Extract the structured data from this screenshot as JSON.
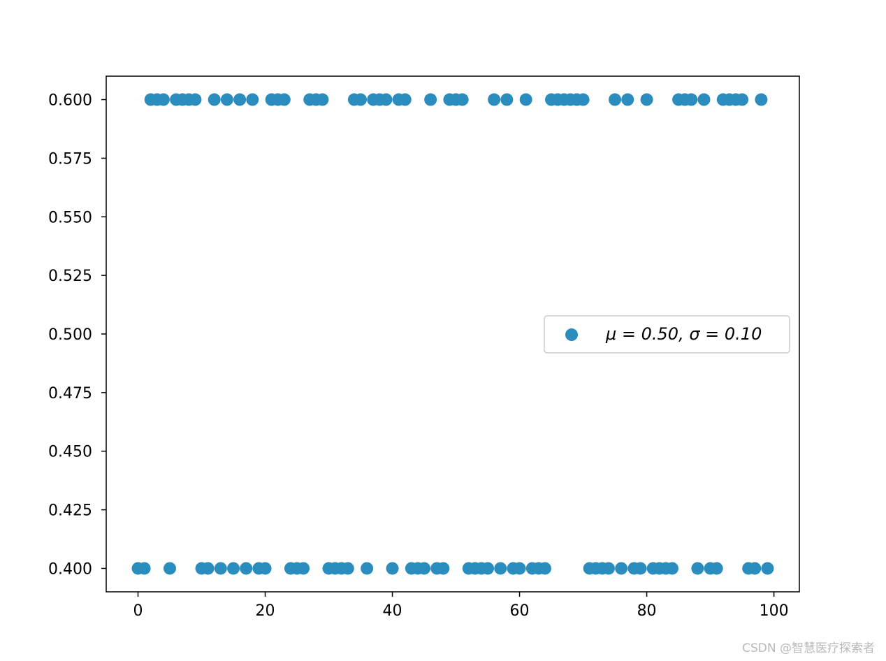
{
  "chart_data": {
    "type": "scatter",
    "title": "",
    "xlabel": "",
    "ylabel": "",
    "xlim": [
      -5,
      104
    ],
    "ylim": [
      0.39,
      0.61
    ],
    "xticks": [
      0,
      20,
      40,
      60,
      80,
      100
    ],
    "xtick_labels": [
      "0",
      "20",
      "40",
      "60",
      "80",
      "100"
    ],
    "yticks": [
      0.4,
      0.425,
      0.45,
      0.475,
      0.5,
      0.525,
      0.55,
      0.575,
      0.6
    ],
    "ytick_labels": [
      "0.400",
      "0.425",
      "0.450",
      "0.475",
      "0.500",
      "0.525",
      "0.550",
      "0.575",
      "0.600"
    ],
    "grid": false,
    "legend_position": "center-right",
    "series": [
      {
        "name": "μ = 0.50,  σ = 0.10",
        "color": "#2b8cbe",
        "x": [
          0,
          1,
          2,
          3,
          4,
          5,
          6,
          7,
          8,
          9,
          10,
          11,
          12,
          13,
          14,
          15,
          16,
          17,
          18,
          19,
          20,
          21,
          22,
          23,
          24,
          25,
          26,
          27,
          28,
          29,
          30,
          31,
          32,
          33,
          34,
          35,
          36,
          37,
          38,
          39,
          40,
          41,
          42,
          43,
          44,
          45,
          46,
          47,
          48,
          49,
          50,
          51,
          52,
          53,
          54,
          55,
          56,
          57,
          58,
          59,
          60,
          61,
          62,
          63,
          64,
          65,
          66,
          67,
          68,
          69,
          70,
          71,
          72,
          73,
          74,
          75,
          76,
          77,
          78,
          79,
          80,
          81,
          82,
          83,
          84,
          85,
          86,
          87,
          88,
          89,
          90,
          91,
          92,
          93,
          94,
          95,
          96,
          97,
          98,
          99
        ],
        "y": [
          0.4,
          0.4,
          0.6,
          0.6,
          0.6,
          0.4,
          0.6,
          0.6,
          0.6,
          0.6,
          0.4,
          0.4,
          0.6,
          0.4,
          0.6,
          0.4,
          0.6,
          0.4,
          0.6,
          0.4,
          0.4,
          0.6,
          0.6,
          0.6,
          0.4,
          0.4,
          0.4,
          0.6,
          0.6,
          0.6,
          0.4,
          0.4,
          0.4,
          0.4,
          0.6,
          0.6,
          0.4,
          0.6,
          0.6,
          0.6,
          0.4,
          0.6,
          0.6,
          0.4,
          0.4,
          0.4,
          0.6,
          0.4,
          0.4,
          0.6,
          0.6,
          0.6,
          0.4,
          0.4,
          0.4,
          0.4,
          0.6,
          0.4,
          0.6,
          0.4,
          0.4,
          0.6,
          0.4,
          0.4,
          0.4,
          0.6,
          0.6,
          0.6,
          0.6,
          0.6,
          0.6,
          0.4,
          0.4,
          0.4,
          0.4,
          0.6,
          0.4,
          0.6,
          0.4,
          0.4,
          0.6,
          0.4,
          0.4,
          0.4,
          0.4,
          0.6,
          0.6,
          0.6,
          0.4,
          0.6,
          0.4,
          0.4,
          0.6,
          0.6,
          0.6,
          0.6,
          0.4,
          0.4,
          0.6,
          0.4
        ]
      }
    ]
  },
  "watermark": "CSDN @智慧医疗探索者"
}
